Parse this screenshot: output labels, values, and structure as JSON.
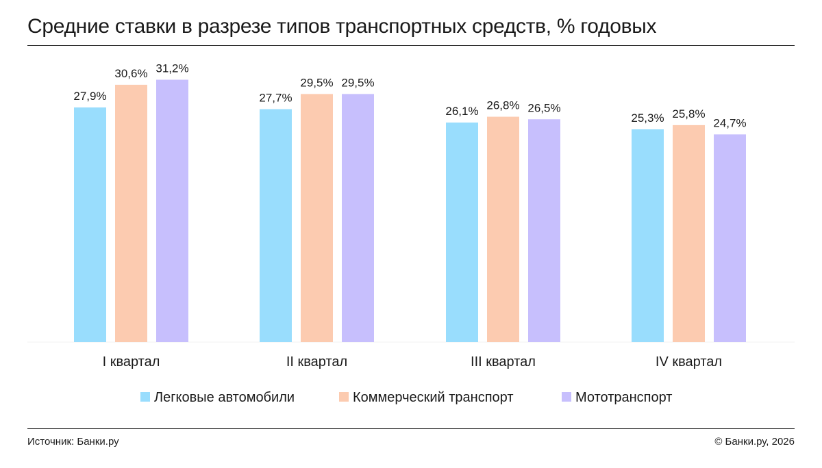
{
  "chart_data": {
    "type": "bar",
    "title": "Средние ставки в разрезе типов транспортных средств, % годовых",
    "categories": [
      "I квартал",
      "II квартал",
      "III квартал",
      "IV квартал"
    ],
    "series": [
      {
        "name": "Легковые автомобили",
        "color": "#99DDFD",
        "values": [
          27.9,
          27.7,
          26.1,
          25.3
        ],
        "labels": [
          "27,9%",
          "27,7%",
          "26,1%",
          "25,3%"
        ]
      },
      {
        "name": "Коммерческий транспорт",
        "color": "#FCCBB0",
        "values": [
          30.6,
          29.5,
          26.8,
          25.8
        ],
        "labels": [
          "30,6%",
          "29,5%",
          "26,8%",
          "25,8%"
        ]
      },
      {
        "name": "Мототранспорт",
        "color": "#C7BFFD",
        "values": [
          31.2,
          29.5,
          26.5,
          24.7
        ],
        "labels": [
          "31,2%",
          "29,5%",
          "26,5%",
          "24,7%"
        ]
      }
    ],
    "ylim": [
      0,
      33
    ],
    "grid": false,
    "legend_position": "bottom-center"
  },
  "footer": {
    "source": "Источник: Банки.ру",
    "copyright": "© Банки.ру, 2026"
  }
}
